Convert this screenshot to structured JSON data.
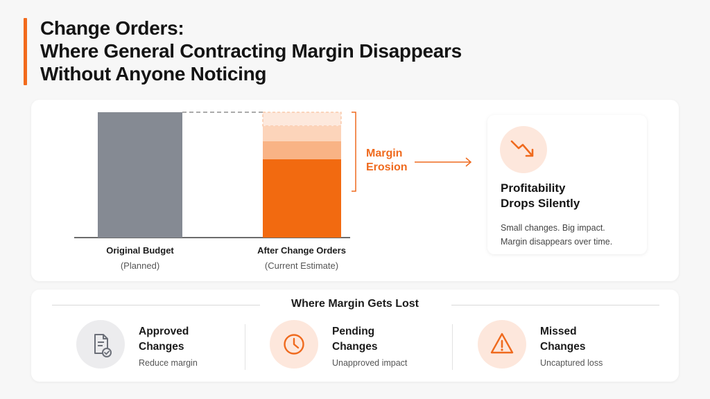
{
  "title": {
    "line1": "Change Orders:",
    "line2": "Where General Contracting Margin Disappears",
    "line3": "Without Anyone Noticing"
  },
  "diagram": {
    "original": {
      "name": "Original Budget",
      "sub": "(Planned)"
    },
    "after": {
      "name": "After Change Orders",
      "sub": "(Current Estimate)"
    },
    "erosion_line1": "Margin",
    "erosion_line2": "Erosion",
    "colors": {
      "original": "#858a93",
      "after": "#f26a10",
      "accent": "#ef6a1e"
    }
  },
  "insight": {
    "icon": "trend-down-icon",
    "heading_line1": "Profitability",
    "heading_line2": "Drops Silently",
    "body_line1": "Small changes. Big impact.",
    "body_line2": "Margin disappears over time."
  },
  "lost": {
    "title": "Where Margin Gets Lost",
    "items": [
      {
        "name_line1": "Approved",
        "name_line2": "Changes",
        "desc": "Reduce margin",
        "icon": "approved-document-icon"
      },
      {
        "name_line1": "Pending",
        "name_line2": "Changes",
        "desc": "Unapproved impact",
        "icon": "clock-icon"
      },
      {
        "name_line1": "Missed",
        "name_line2": "Changes",
        "desc": "Uncaptured loss",
        "icon": "warning-icon"
      }
    ]
  }
}
